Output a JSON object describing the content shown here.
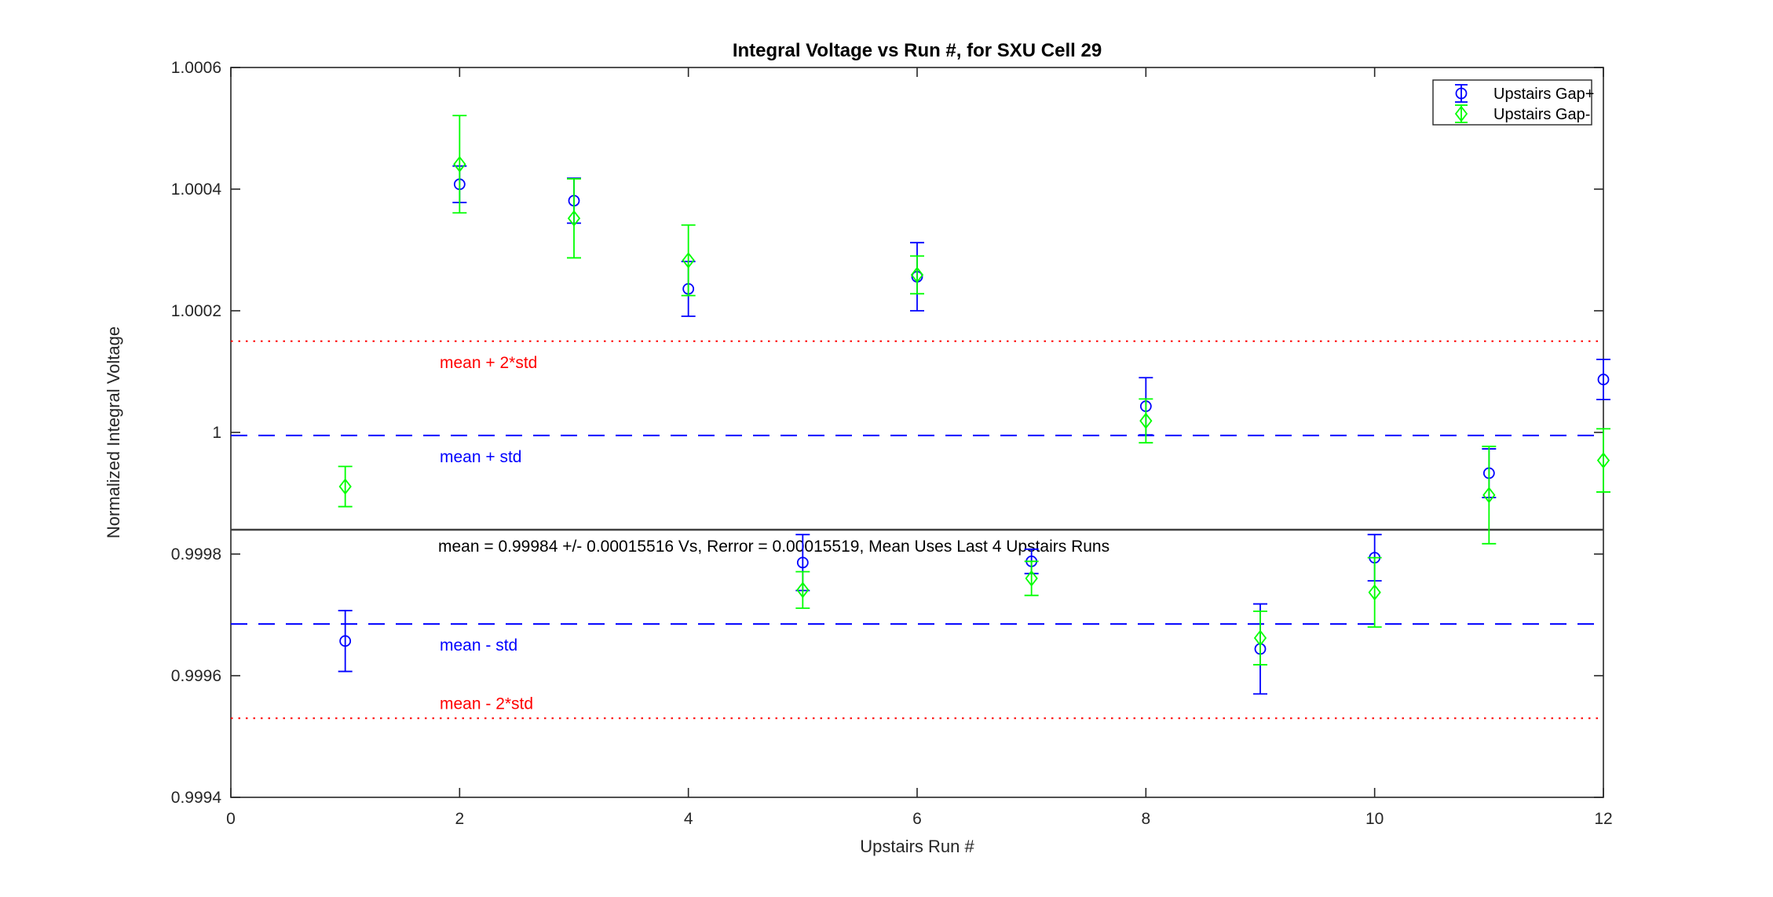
{
  "figure": {
    "background": "#FFFFFF",
    "axis_color": "#262626",
    "text_color": "#262626"
  },
  "chart_data": {
    "type": "scatter",
    "title": "Integral Voltage vs Run #, for SXU Cell 29",
    "xlabel": "Upstairs Run #",
    "ylabel": "Normalized Integral Voltage",
    "xlim": [
      0,
      12
    ],
    "ylim": [
      0.9994,
      1.0006
    ],
    "grid": false,
    "legend_position": "top-right",
    "xticks": [
      {
        "v": 0,
        "label": "0"
      },
      {
        "v": 2,
        "label": "2"
      },
      {
        "v": 4,
        "label": "4"
      },
      {
        "v": 6,
        "label": "6"
      },
      {
        "v": 8,
        "label": "8"
      },
      {
        "v": 10,
        "label": "10"
      },
      {
        "v": 12,
        "label": "12"
      }
    ],
    "yticks": [
      {
        "v": 0.9994,
        "label": "0.9994"
      },
      {
        "v": 0.9996,
        "label": "0.9996"
      },
      {
        "v": 0.9998,
        "label": "0.9998"
      },
      {
        "v": 1.0,
        "label": "1"
      },
      {
        "v": 1.0002,
        "label": "1.0002"
      },
      {
        "v": 1.0004,
        "label": "1.0004"
      },
      {
        "v": 1.0006,
        "label": "1.0006"
      }
    ],
    "series": [
      {
        "name": "Upstairs Gap+",
        "marker": "circle",
        "color": "#0000FF",
        "points": [
          {
            "x": 1,
            "y": 0.999657,
            "err": 5e-05
          },
          {
            "x": 2,
            "y": 1.000408,
            "err": 3e-05
          },
          {
            "x": 3,
            "y": 1.000381,
            "err": 3.7e-05
          },
          {
            "x": 4,
            "y": 1.000236,
            "err": 4.5e-05
          },
          {
            "x": 5,
            "y": 0.999786,
            "err": 4.6e-05
          },
          {
            "x": 6,
            "y": 1.000256,
            "err": 5.6e-05
          },
          {
            "x": 7,
            "y": 0.999788,
            "err": 2e-05
          },
          {
            "x": 8,
            "y": 1.000043,
            "err": 4.7e-05
          },
          {
            "x": 9,
            "y": 0.999644,
            "err": 7.4e-05
          },
          {
            "x": 10,
            "y": 0.999794,
            "err": 3.8e-05
          },
          {
            "x": 11,
            "y": 0.999933,
            "err": 4e-05
          },
          {
            "x": 12,
            "y": 1.000087,
            "err": 3.3e-05
          }
        ]
      },
      {
        "name": "Upstairs Gap-",
        "marker": "diamond",
        "color": "#00FF00",
        "points": [
          {
            "x": 1,
            "y": 0.999911,
            "err": 3.3e-05
          },
          {
            "x": 2,
            "y": 1.000441,
            "err": 8e-05
          },
          {
            "x": 3,
            "y": 1.000352,
            "err": 6.5e-05
          },
          {
            "x": 4,
            "y": 1.000283,
            "err": 5.8e-05
          },
          {
            "x": 5,
            "y": 0.999741,
            "err": 3e-05
          },
          {
            "x": 6,
            "y": 1.000259,
            "err": 3.1e-05
          },
          {
            "x": 7,
            "y": 0.99976,
            "err": 2.8e-05
          },
          {
            "x": 8,
            "y": 1.000019,
            "err": 3.6e-05
          },
          {
            "x": 9,
            "y": 0.999662,
            "err": 4.4e-05
          },
          {
            "x": 10,
            "y": 0.999737,
            "err": 5.7e-05
          },
          {
            "x": 11,
            "y": 0.999897,
            "err": 8e-05
          },
          {
            "x": 12,
            "y": 0.999954,
            "err": 5.2e-05
          }
        ]
      }
    ],
    "reference_lines": [
      {
        "label": "mean + 2*std",
        "value": 1.00015,
        "color": "#FF0000",
        "style": "dotted",
        "label_side": "below"
      },
      {
        "label": "mean + std",
        "value": 0.999995,
        "color": "#0000FF",
        "style": "dashed",
        "label_side": "below"
      },
      {
        "label": "",
        "value": 0.99984,
        "color": "#404040",
        "style": "solid",
        "label_side": "none"
      },
      {
        "label": "mean - std",
        "value": 0.999685,
        "color": "#0000FF",
        "style": "dashed",
        "label_side": "below"
      },
      {
        "label": "mean - 2*std",
        "value": 0.99953,
        "color": "#FF0000",
        "style": "dotted",
        "label_side": "above"
      }
    ],
    "annotation": "mean = 0.99984 +/- 0.00015516 Vs, Rerror = 0.00015519, Mean Uses Last 4 Upstairs Runs"
  },
  "legend": {
    "items": [
      {
        "label": "Upstairs Gap+",
        "color": "#0000FF",
        "marker": "circle"
      },
      {
        "label": "Upstairs Gap-",
        "color": "#00FF00",
        "marker": "diamond"
      }
    ]
  }
}
